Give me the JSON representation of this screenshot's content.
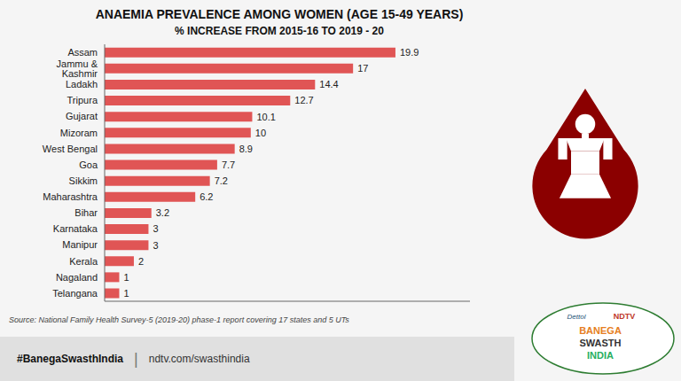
{
  "chart_data": {
    "type": "bar",
    "orientation": "horizontal",
    "title": "ANAEMIA PREVALENCE AMONG WOMEN (AGE 15-49 YEARS)",
    "subtitle": "% INCREASE FROM 2015-16 TO 2019 - 20",
    "categories": [
      "Assam",
      "Jammu & Kashmir",
      "Ladakh",
      "Tripura",
      "Gujarat",
      "Mizoram",
      "West Bengal",
      "Goa",
      "Sikkim",
      "Maharashtra",
      "Bihar",
      "Karnataka",
      "Manipur",
      "Kerala",
      "Nagaland",
      "Telangana"
    ],
    "values": [
      19.9,
      17,
      14.4,
      12.7,
      10.1,
      10,
      8.9,
      7.7,
      7.2,
      6.2,
      3.2,
      3,
      3,
      2,
      1,
      1
    ],
    "color": "#e05555",
    "xlim": [
      0,
      25
    ],
    "data_labels": true,
    "tick_labels": "y",
    "grid": false,
    "annotations": [
      "Source: National Family Health Survey-5 (2019-20) phase-1 report covering 17 states and 5 UTs",
      "#BanegaSwasthIndia",
      "|",
      "ndtv.com/swasthindia",
      "Dettol",
      "NDTV",
      "BANEGA",
      "SWASTH",
      "INDIA"
    ]
  }
}
